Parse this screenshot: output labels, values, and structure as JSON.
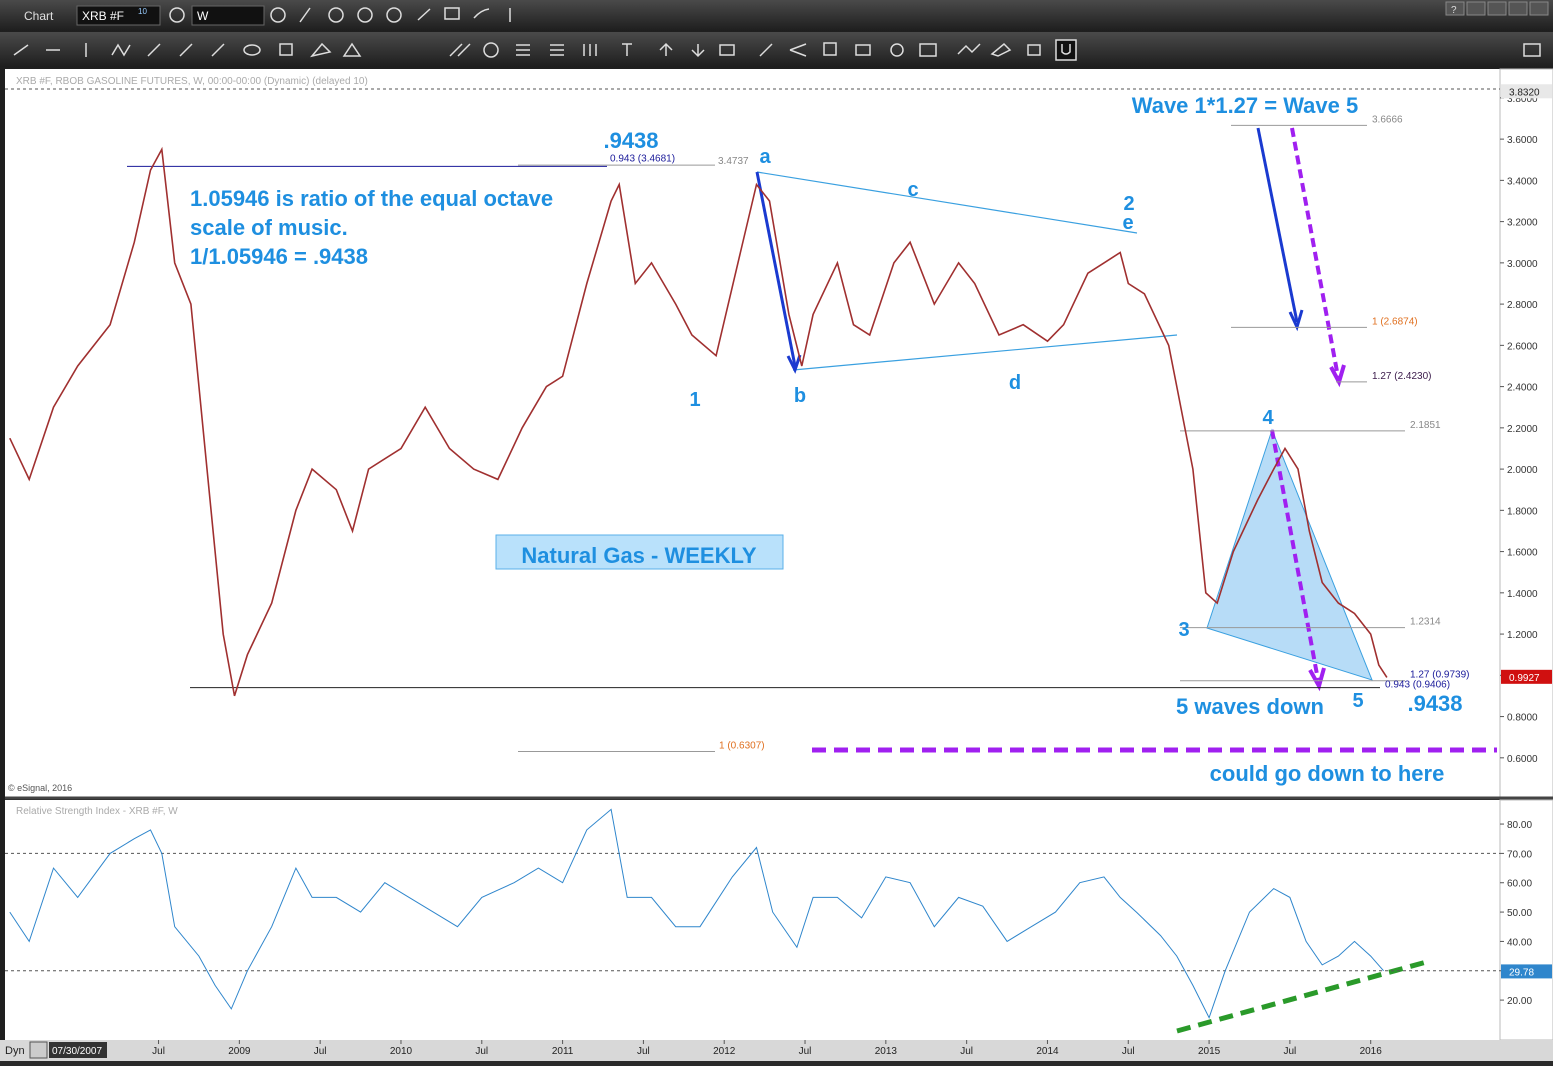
{
  "toolbar": {
    "title": "Chart",
    "symbol": "XRB #F",
    "symbol_badge": "10",
    "interval": "W",
    "help": "?"
  },
  "chart_data": [
    {
      "type": "line",
      "subtitle": "XRB #F, RBOB GASOLINE FUTURES, W, 00:00-00:00 (Dynamic) (delayed 10)",
      "credit": "© eSignal, 2016",
      "xlim": [
        2007.55,
        2016.8
      ],
      "ylim": [
        0.41,
        3.94
      ],
      "yticks": [
        {
          "value": 0.6,
          "label": "0.6000"
        },
        {
          "value": 0.8,
          "label": "0.8000"
        },
        {
          "value": 1.0,
          "label": "1.0000"
        },
        {
          "value": 1.2,
          "label": "1.2000"
        },
        {
          "value": 1.4,
          "label": "1.4000"
        },
        {
          "value": 1.6,
          "label": "1.6000"
        },
        {
          "value": 1.8,
          "label": "1.8000"
        },
        {
          "value": 2.0,
          "label": "2.0000"
        },
        {
          "value": 2.2,
          "label": "2.2000"
        },
        {
          "value": 2.4,
          "label": "2.4000"
        },
        {
          "value": 2.6,
          "label": "2.6000"
        },
        {
          "value": 2.8,
          "label": "2.8000"
        },
        {
          "value": 3.0,
          "label": "3.0000"
        },
        {
          "value": 3.2,
          "label": "3.2000"
        },
        {
          "value": 3.4,
          "label": "3.4000"
        },
        {
          "value": 3.6,
          "label": "3.6000"
        },
        {
          "value": 3.8,
          "label": "3.8000"
        }
      ],
      "top_marker": {
        "value": 3.832,
        "label": "3.8320"
      },
      "last_price": {
        "value": 0.9927,
        "label": "0.9927",
        "color": "#d01010"
      },
      "series": [
        {
          "color": "#a03030",
          "x": [
            2007.58,
            2007.7,
            2007.85,
            2008.0,
            2008.2,
            2008.35,
            2008.45,
            2008.52,
            2008.6,
            2008.7,
            2008.8,
            2008.9,
            2008.97,
            2009.05,
            2009.2,
            2009.35,
            2009.45,
            2009.6,
            2009.7,
            2009.8,
            2010.0,
            2010.15,
            2010.3,
            2010.45,
            2010.6,
            2010.75,
            2010.9,
            2011.0,
            2011.15,
            2011.3,
            2011.35,
            2011.45,
            2011.55,
            2011.7,
            2011.8,
            2011.95,
            2012.1,
            2012.2,
            2012.28,
            2012.4,
            2012.48,
            2012.55,
            2012.7,
            2012.8,
            2012.9,
            2013.05,
            2013.15,
            2013.3,
            2013.45,
            2013.55,
            2013.7,
            2013.85,
            2014.0,
            2014.1,
            2014.25,
            2014.35,
            2014.45,
            2014.5,
            2014.6,
            2014.75,
            2014.8,
            2014.9,
            2014.98,
            2015.05,
            2015.15,
            2015.3,
            2015.4,
            2015.47,
            2015.55,
            2015.62,
            2015.7,
            2015.8,
            2015.9,
            2016.0,
            2016.05,
            2016.1
          ],
          "values": [
            2.15,
            1.95,
            2.3,
            2.5,
            2.7,
            3.1,
            3.45,
            3.55,
            3.0,
            2.8,
            2.0,
            1.2,
            0.9,
            1.1,
            1.35,
            1.8,
            2.0,
            1.9,
            1.7,
            2.0,
            2.1,
            2.3,
            2.1,
            2.0,
            1.95,
            2.2,
            2.4,
            2.45,
            2.9,
            3.3,
            3.38,
            2.9,
            3.0,
            2.8,
            2.65,
            2.55,
            3.05,
            3.38,
            3.3,
            2.75,
            2.5,
            2.75,
            3.0,
            2.7,
            2.65,
            3.0,
            3.1,
            2.8,
            3.0,
            2.9,
            2.65,
            2.7,
            2.62,
            2.7,
            2.95,
            3.0,
            3.05,
            2.9,
            2.85,
            2.6,
            2.4,
            2.0,
            1.4,
            1.35,
            1.6,
            1.85,
            2.0,
            2.1,
            2.0,
            1.7,
            1.45,
            1.35,
            1.3,
            1.2,
            1.05,
            0.99
          ]
        }
      ],
      "levels": [
        {
          "value": 3.4737,
          "label": "3.4737",
          "color": "#888888"
        },
        {
          "value": 3.4681,
          "label": "0.943 (3.4681)",
          "color": "#1a1a9a"
        },
        {
          "value": 0.6307,
          "label": "1 (0.6307)",
          "color": "#e07020"
        },
        {
          "value": 3.6666,
          "label": "3.6666",
          "color": "#888888"
        },
        {
          "value": 2.6874,
          "label": "1 (2.6874)",
          "color": "#e07020"
        },
        {
          "value": 2.423,
          "label": "1.27 (2.4230)",
          "color": "#3a1a4a"
        },
        {
          "value": 2.1851,
          "label": "2.1851",
          "color": "#888888"
        },
        {
          "value": 1.2314,
          "label": "1.2314",
          "color": "#888888"
        },
        {
          "value": 0.9739,
          "label": "1.27 (0.9739)",
          "color": "#1a1a9a"
        },
        {
          "value": 0.9406,
          "label": "0.943 (0.9406)",
          "color": "#1a1a9a"
        }
      ],
      "annotations": [
        ".9438",
        "a",
        "b",
        "c",
        "d",
        "2",
        "e",
        "1",
        "3",
        "4",
        "5",
        "5 waves down",
        ".9438",
        "Wave 1*1.27 = Wave 5",
        "could go down to here",
        "1.05946 is ratio of the equal octave",
        "scale of music.",
        "1/1.05946 = .9438"
      ],
      "annotation_color": "#1e8fe0",
      "box_label": "Natural Gas - WEEKLY"
    },
    {
      "type": "line",
      "subtitle": "Relative Strength Index - XRB #F, W",
      "xlim": [
        2007.55,
        2016.8
      ],
      "ylim": [
        6.4,
        88.2
      ],
      "yticks": [
        {
          "value": 20,
          "label": "20.00"
        },
        {
          "value": 30,
          "label": "30.00"
        },
        {
          "value": 40,
          "label": "40.00"
        },
        {
          "value": 50,
          "label": "50.00"
        },
        {
          "value": 60,
          "label": "60.00"
        },
        {
          "value": 70,
          "label": "70.00"
        },
        {
          "value": 80,
          "label": "80.00"
        }
      ],
      "hlines": [
        70,
        30
      ],
      "last_value": {
        "value": 29.78,
        "label": "29.78"
      },
      "series": [
        {
          "color": "#2f86cc",
          "x": [
            2007.58,
            2007.7,
            2007.85,
            2008.0,
            2008.2,
            2008.35,
            2008.45,
            2008.52,
            2008.6,
            2008.75,
            2008.85,
            2008.95,
            2009.05,
            2009.2,
            2009.35,
            2009.45,
            2009.6,
            2009.75,
            2009.9,
            2010.05,
            2010.2,
            2010.35,
            2010.5,
            2010.7,
            2010.85,
            2011.0,
            2011.15,
            2011.3,
            2011.4,
            2011.55,
            2011.7,
            2011.85,
            2012.05,
            2012.2,
            2012.3,
            2012.45,
            2012.55,
            2012.7,
            2012.85,
            2013.0,
            2013.15,
            2013.3,
            2013.45,
            2013.6,
            2013.75,
            2013.9,
            2014.05,
            2014.2,
            2014.35,
            2014.45,
            2014.55,
            2014.7,
            2014.8,
            2014.9,
            2015.0,
            2015.1,
            2015.25,
            2015.4,
            2015.5,
            2015.6,
            2015.7,
            2015.8,
            2015.9,
            2016.0,
            2016.08
          ],
          "values": [
            50,
            40,
            65,
            55,
            70,
            75,
            78,
            70,
            45,
            35,
            25,
            17,
            30,
            45,
            65,
            55,
            55,
            50,
            60,
            55,
            50,
            45,
            55,
            60,
            65,
            60,
            78,
            85,
            55,
            55,
            45,
            45,
            62,
            72,
            50,
            38,
            55,
            55,
            48,
            62,
            60,
            45,
            55,
            52,
            40,
            45,
            50,
            60,
            62,
            55,
            50,
            42,
            35,
            25,
            14,
            30,
            50,
            58,
            55,
            40,
            32,
            35,
            40,
            35,
            30
          ]
        }
      ],
      "xticks": [
        {
          "value": 2008.5,
          "label": "Jul"
        },
        2009,
        {
          "value": 2009.5,
          "label": "Jul"
        },
        2010,
        {
          "value": 2010.5,
          "label": "Jul"
        },
        2011,
        {
          "value": 2011.5,
          "label": "Jul"
        },
        2012,
        {
          "value": 2012.5,
          "label": "Jul"
        },
        2013,
        {
          "value": 2013.5,
          "label": "Jul"
        },
        2014,
        {
          "value": 2014.5,
          "label": "Jul"
        },
        2015,
        {
          "value": 2015.5,
          "label": "Jul"
        },
        2016
      ],
      "dyn_label": "Dyn",
      "start_date": "07/30/2007"
    }
  ]
}
